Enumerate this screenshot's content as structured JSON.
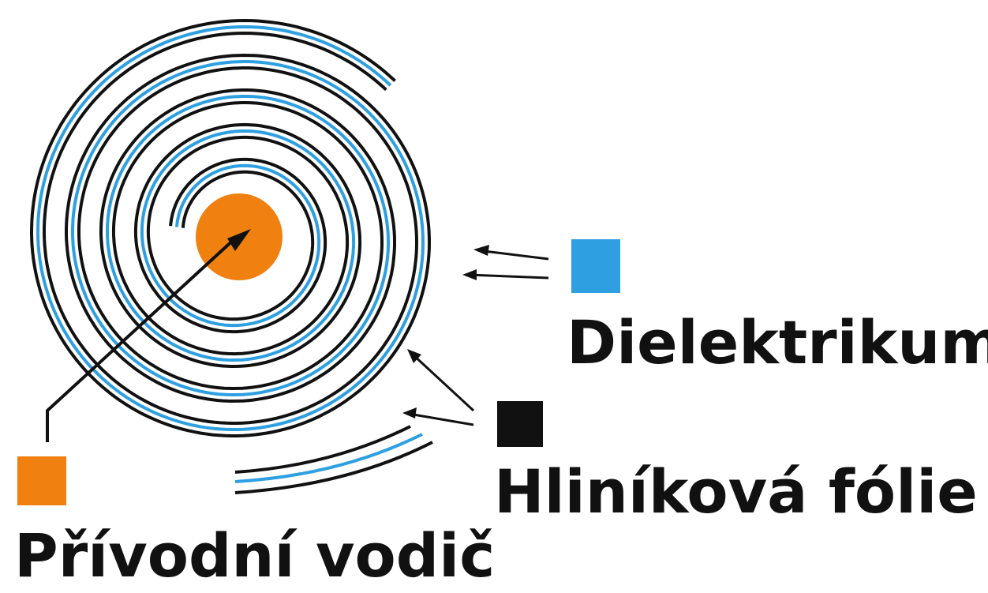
{
  "colors": {
    "dielectric": "#2e9fe0",
    "foil": "#111111",
    "lead": "#f0800f"
  },
  "legend": {
    "dielectric": "Dielektrikum",
    "foil": "Hliníková fólie",
    "lead": "Přívodní vodič"
  }
}
